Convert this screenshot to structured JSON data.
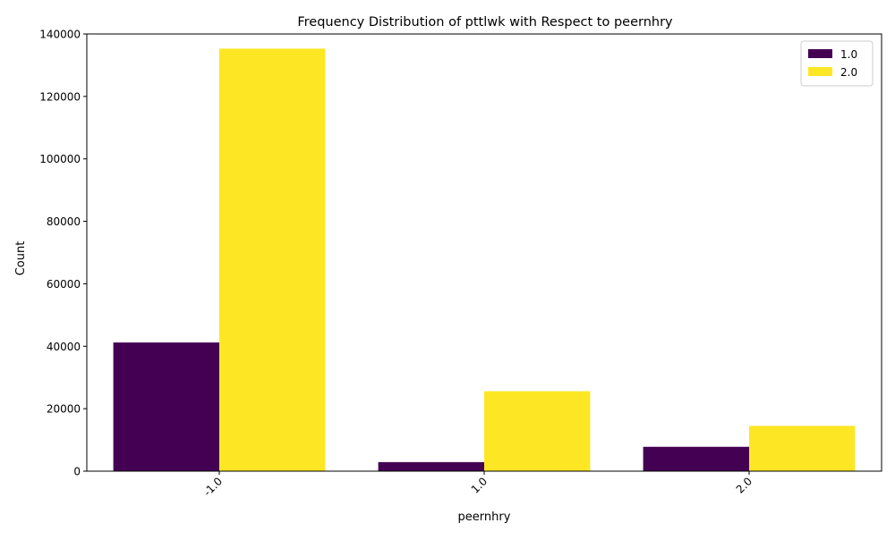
{
  "chart_data": {
    "type": "bar",
    "title": "Frequency Distribution of pttlwk with Respect to peernhry",
    "xlabel": "peernhry",
    "ylabel": "Count",
    "categories": [
      "-1.0",
      "1.0",
      "2.0"
    ],
    "series": [
      {
        "name": "1.0",
        "color": "#440154",
        "values": [
          41200,
          2900,
          7800
        ]
      },
      {
        "name": "2.0",
        "color": "#fde725",
        "values": [
          135300,
          25600,
          14500
        ]
      }
    ],
    "ylim": [
      0,
      140000
    ],
    "yticks": [
      0,
      20000,
      40000,
      60000,
      80000,
      100000,
      120000,
      140000
    ],
    "grid": false,
    "legend_position": "top-right"
  }
}
